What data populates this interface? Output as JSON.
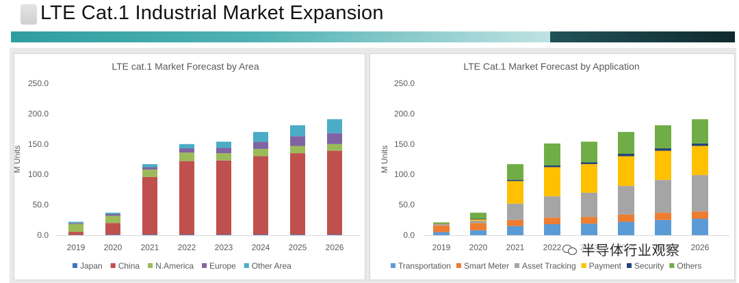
{
  "header": {
    "title": "LTE Cat.1 Industrial Market Expansion"
  },
  "watermark": {
    "text": "半导体行业观察"
  },
  "colors": {
    "title_bar_teal": "#3aa5a6",
    "title_bar_dark": "#163b40",
    "Japan": "#4472c4",
    "China": "#c0504d",
    "N.America": "#9bbb59",
    "Europe": "#8064a2",
    "Other Area": "#4bacc6",
    "Transportation": "#5b9bd5",
    "Smart Meter": "#ed7d31",
    "Asset Tracking": "#a5a5a5",
    "Payment": "#ffc000",
    "Security": "#264478",
    "Others": "#70ad47"
  },
  "chart_data": [
    {
      "type": "bar",
      "stacked": true,
      "title": "LTE cat.1 Market Forecast by Area",
      "xlabel": "",
      "ylabel": "M Units",
      "ylim": [
        0,
        250
      ],
      "yticks": [
        "0.0",
        "50.0",
        "100.0",
        "150.0",
        "200.0",
        "250.0"
      ],
      "grid": false,
      "legend": "bottom",
      "categories": [
        "2019",
        "2020",
        "2021",
        "2022",
        "2023",
        "2024",
        "2025",
        "2026"
      ],
      "series": [
        {
          "name": "Japan",
          "color": "#4472c4",
          "values": [
            0.5,
            1,
            1,
            1,
            1,
            1,
            1,
            1
          ]
        },
        {
          "name": "China",
          "color": "#c0504d",
          "values": [
            5,
            19,
            95,
            121,
            122,
            129,
            134,
            138
          ]
        },
        {
          "name": "N.America",
          "color": "#9bbb59",
          "values": [
            13,
            12,
            12,
            14,
            12,
            12,
            12,
            11
          ]
        },
        {
          "name": "Europe",
          "color": "#8064a2",
          "values": [
            1.5,
            3,
            4,
            7,
            9,
            12,
            16,
            18
          ]
        },
        {
          "name": "Other Area",
          "color": "#4bacc6",
          "values": [
            2,
            2,
            5,
            7,
            10,
            16,
            18,
            23
          ]
        }
      ]
    },
    {
      "type": "bar",
      "stacked": true,
      "title": "LTE Cat.1 Market Forecast by Application",
      "xlabel": "",
      "ylabel": "M Units",
      "ylim": [
        0,
        250
      ],
      "yticks": [
        "0.0",
        "50.0",
        "100.0",
        "150.0",
        "200.0",
        "250.0"
      ],
      "grid": false,
      "legend": "bottom",
      "categories": [
        "2019",
        "2020",
        "2021",
        "2022",
        "2023",
        "2024",
        "2025",
        "2026"
      ],
      "series": [
        {
          "name": "Transportation",
          "color": "#5b9bd5",
          "values": [
            5,
            8,
            15,
            18,
            19,
            22,
            25,
            27
          ]
        },
        {
          "name": "Smart Meter",
          "color": "#ed7d31",
          "values": [
            11,
            12,
            10,
            11,
            11,
            12,
            12,
            12
          ]
        },
        {
          "name": "Asset Tracking",
          "color": "#a5a5a5",
          "values": [
            2,
            4,
            27,
            35,
            40,
            47,
            54,
            60
          ]
        },
        {
          "name": "Payment",
          "color": "#ffc000",
          "values": [
            0.5,
            2,
            37,
            48,
            47,
            49,
            48,
            48
          ]
        },
        {
          "name": "Security",
          "color": "#264478",
          "values": [
            0.5,
            1,
            2,
            3,
            3,
            4,
            4,
            4
          ]
        },
        {
          "name": "Others",
          "color": "#70ad47",
          "values": [
            2,
            10,
            26,
            36,
            34,
            36,
            38,
            40
          ]
        }
      ]
    }
  ]
}
